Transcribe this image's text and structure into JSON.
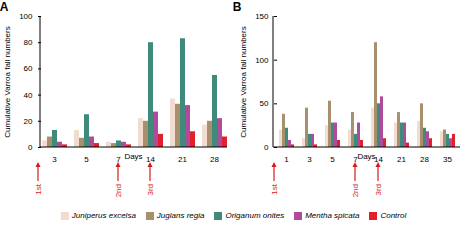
{
  "chart_data": [
    {
      "type": "bar",
      "title": "A",
      "x_label": "Days",
      "y_label": "Cumulative Varroa fall numbers",
      "categories": [
        "3",
        "5",
        "7",
        "14",
        "21",
        "28"
      ],
      "series": [
        {
          "name": "Juniperus excelsa",
          "color": "#f2dccf",
          "values": [
            5,
            13,
            4,
            22,
            37,
            17
          ]
        },
        {
          "name": "Juglans regia",
          "color": "#a8906f",
          "values": [
            8,
            7,
            3,
            20,
            33,
            20
          ]
        },
        {
          "name": "Origanum onites",
          "color": "#3f8a7a",
          "values": [
            13,
            25,
            5,
            80,
            83,
            55
          ]
        },
        {
          "name": "Mentha spicata",
          "color": "#b04a9c",
          "values": [
            4,
            8,
            4,
            27,
            32,
            22
          ]
        },
        {
          "name": "Control",
          "color": "#e0202a",
          "values": [
            2,
            3,
            2,
            10,
            12,
            8
          ]
        }
      ],
      "ylim": [
        0,
        100
      ],
      "yticks": [
        0,
        20,
        40,
        60,
        80,
        100
      ],
      "legend": "bottom",
      "annotations": [
        {
          "text": "1st",
          "day": 0
        },
        {
          "text": "2nd",
          "day": 7
        },
        {
          "text": "3rd",
          "day": 14
        }
      ]
    },
    {
      "type": "bar",
      "title": "B",
      "x_label": "Days",
      "y_label": "Cumulative Varroa fall numbers",
      "categories": [
        "1",
        "3",
        "5",
        "7",
        "14",
        "21",
        "28",
        "35"
      ],
      "series": [
        {
          "name": "Juniperus excelsa",
          "color": "#f2dccf",
          "values": [
            20,
            10,
            25,
            20,
            45,
            28,
            30,
            18
          ]
        },
        {
          "name": "Juglans regia",
          "color": "#a8906f",
          "values": [
            38,
            45,
            53,
            40,
            120,
            40,
            50,
            20
          ]
        },
        {
          "name": "Origanum onites",
          "color": "#3f8a7a",
          "values": [
            22,
            15,
            28,
            15,
            50,
            28,
            22,
            15
          ]
        },
        {
          "name": "Mentha spicata",
          "color": "#b04a9c",
          "values": [
            8,
            15,
            28,
            28,
            58,
            28,
            18,
            10
          ]
        },
        {
          "name": "Control",
          "color": "#e0202a",
          "values": [
            3,
            3,
            8,
            8,
            10,
            5,
            10,
            15
          ]
        }
      ],
      "ylim": [
        0,
        150
      ],
      "yticks": [
        0,
        50,
        100,
        150
      ],
      "legend": "bottom",
      "annotations": [
        {
          "text": "1st",
          "day": 0
        },
        {
          "text": "2nd",
          "day": 7
        },
        {
          "text": "3rd",
          "day": 14
        }
      ]
    }
  ]
}
